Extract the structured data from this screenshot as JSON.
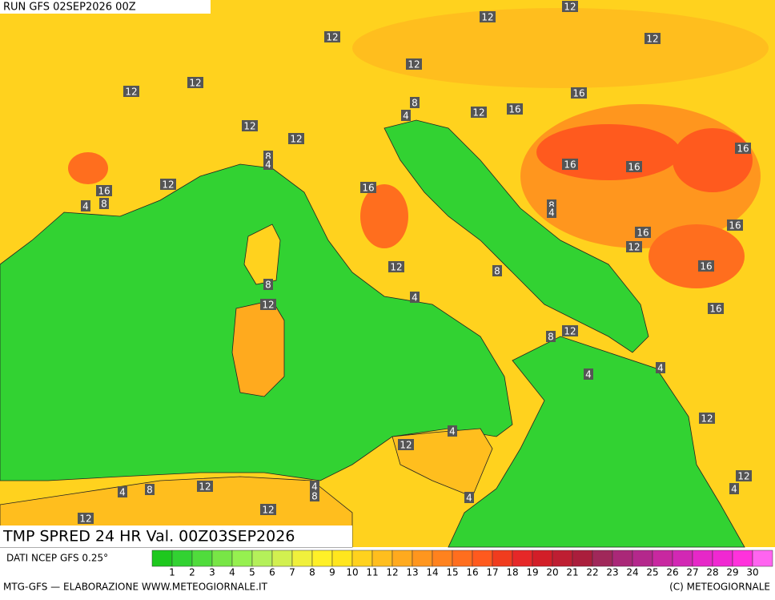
{
  "header": {
    "run": "RUN GFS 02SEP2026 00Z",
    "title": "TMP SPRED 24 HR Val. 00Z03SEP2026"
  },
  "source": "DATI NCEP GFS 0.25°",
  "footer": {
    "left": "MTG-GFS — ELABORAZIONE WWW.METEOGIORNALE.IT",
    "right": "(C) METEOGIORNALE"
  },
  "legend": {
    "values": [
      1,
      2,
      3,
      4,
      5,
      6,
      7,
      8,
      9,
      10,
      11,
      12,
      13,
      14,
      15,
      16,
      17,
      18,
      19,
      20,
      21,
      22,
      23,
      24,
      25,
      26,
      27,
      28,
      29,
      30
    ],
    "colors": [
      "#1ec81e",
      "#32d232",
      "#50dc3c",
      "#78e646",
      "#96f050",
      "#b4f05a",
      "#d2f050",
      "#f0f03c",
      "#fff028",
      "#ffe61e",
      "#ffd21e",
      "#ffbe1e",
      "#ffaa1e",
      "#ff961e",
      "#ff821e",
      "#ff6e1e",
      "#ff5a1e",
      "#f03c1e",
      "#e62828",
      "#d21e28",
      "#be1e32",
      "#aa1e3c",
      "#a0285a",
      "#aa2878",
      "#b4288c",
      "#c828a0",
      "#d228b4",
      "#e628c8",
      "#f028d2",
      "#ff32dc",
      "#ff64f0"
    ]
  },
  "contour_labels": [
    12,
    12,
    12,
    12,
    12,
    12,
    12,
    8,
    4,
    12,
    16,
    16,
    12,
    12,
    8,
    4,
    16,
    16,
    16,
    12,
    16,
    4,
    8,
    16,
    8,
    4,
    16,
    16,
    12,
    12,
    16,
    8,
    8,
    12,
    4,
    16,
    12,
    8,
    4,
    4,
    12,
    4,
    12,
    12,
    4,
    4,
    8,
    12,
    4,
    8,
    4,
    12,
    12
  ]
}
